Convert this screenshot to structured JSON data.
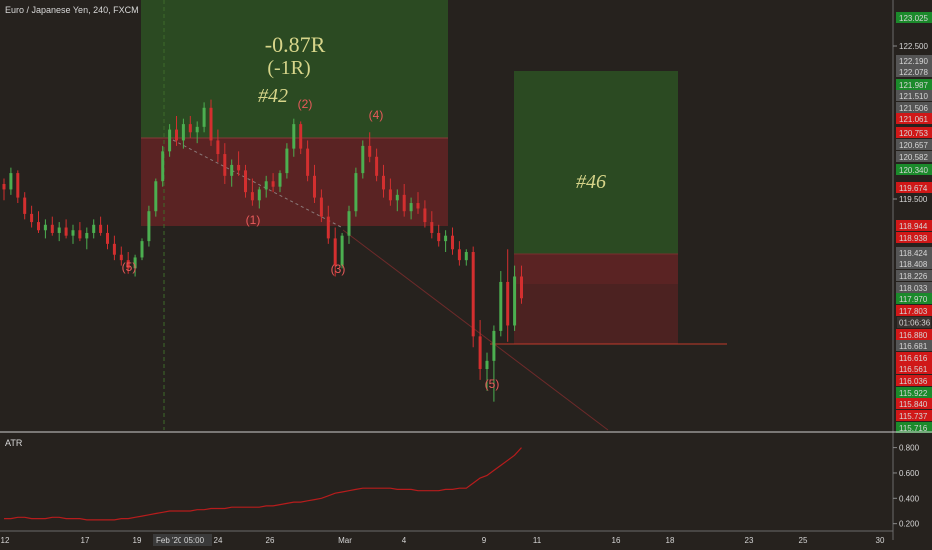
{
  "header": {
    "symbol_title": "Euro / Japanese Yen, 240, FXCM"
  },
  "indicator": {
    "name": "ATR",
    "ticks": [
      "0.800",
      "0.600",
      "0.400",
      "0.200"
    ]
  },
  "annotations": {
    "trade_result": "-0.87R",
    "trade_result_r": "(-1R)",
    "trade_a_id": "#42",
    "trade_b_id": "#46",
    "waves": [
      "(5)",
      "(2)",
      "(4)",
      "(1)",
      "(3)",
      "(5)",
      "(5)"
    ]
  },
  "countdown": "01:06:36",
  "colors": {
    "background": "#26221e",
    "profit_zone": "#2b4a22",
    "loss_zone": "#5a2323",
    "bull_candle": "#4caf50",
    "bear_candle": "#d32f2f",
    "atr_line": "#b71c1c",
    "annotation_text": "#d7d58a",
    "wave_label": "#e85a5a"
  },
  "price_axis": {
    "ticks": [
      "123.025",
      "122.500",
      "122.190",
      "122.078",
      "121.987",
      "121.510",
      "121.506",
      "121.061",
      "120.753",
      "120.657",
      "120.582",
      "120.340",
      "119.674",
      "119.500",
      "118.944",
      "118.938",
      "118.424",
      "118.408",
      "118.226",
      "118.033",
      "117.970",
      "117.803",
      "116.880",
      "116.681",
      "116.616",
      "116.561",
      "116.036",
      "115.922",
      "115.840",
      "115.737",
      "115.716"
    ],
    "tick_styles": [
      "green",
      "plain",
      "gray",
      "gray",
      "green",
      "gray",
      "gray",
      "red",
      "red",
      "gray",
      "gray",
      "green",
      "red",
      "plain",
      "red",
      "red",
      "gray",
      "gray",
      "gray",
      "gray",
      "green",
      "red",
      "red",
      "gray",
      "red",
      "red",
      "red",
      "green",
      "red",
      "red",
      "green"
    ]
  },
  "time_axis": {
    "labels": [
      "12",
      "17",
      "19",
      "Feb '20",
      "05:00",
      "24",
      "26",
      "Mar",
      "4",
      "9",
      "11",
      "16",
      "18",
      "23",
      "25",
      "30"
    ]
  },
  "chart_data": {
    "type": "candlestick",
    "title": "Euro / Japanese Yen, 240, FXCM",
    "ylim": [
      115.716,
      123.25
    ],
    "candles": [
      [
        120.2,
        120.3,
        119.9,
        120.1
      ],
      [
        120.1,
        120.5,
        120.0,
        120.4
      ],
      [
        120.4,
        120.45,
        119.85,
        119.95
      ],
      [
        119.95,
        120.05,
        119.55,
        119.65
      ],
      [
        119.65,
        119.8,
        119.4,
        119.5
      ],
      [
        119.5,
        119.7,
        119.3,
        119.35
      ],
      [
        119.35,
        119.55,
        119.2,
        119.45
      ],
      [
        119.45,
        119.6,
        119.25,
        119.3
      ],
      [
        119.3,
        119.5,
        119.15,
        119.4
      ],
      [
        119.4,
        119.55,
        119.2,
        119.25
      ],
      [
        119.25,
        119.45,
        119.1,
        119.35
      ],
      [
        119.35,
        119.5,
        119.15,
        119.2
      ],
      [
        119.2,
        119.4,
        119.0,
        119.3
      ],
      [
        119.3,
        119.55,
        119.2,
        119.45
      ],
      [
        119.45,
        119.6,
        119.25,
        119.3
      ],
      [
        119.3,
        119.45,
        119.0,
        119.1
      ],
      [
        119.1,
        119.25,
        118.8,
        118.9
      ],
      [
        118.9,
        119.05,
        118.7,
        118.8
      ],
      [
        118.8,
        118.95,
        118.55,
        118.65
      ],
      [
        118.65,
        118.9,
        118.5,
        118.85
      ],
      [
        118.85,
        119.2,
        118.8,
        119.15
      ],
      [
        119.15,
        119.8,
        119.05,
        119.7
      ],
      [
        119.7,
        120.3,
        119.6,
        120.25
      ],
      [
        120.25,
        120.9,
        120.15,
        120.8
      ],
      [
        120.8,
        121.3,
        120.7,
        121.2
      ],
      [
        121.2,
        121.45,
        120.9,
        121.0
      ],
      [
        121.0,
        121.4,
        120.85,
        121.3
      ],
      [
        121.3,
        121.45,
        121.05,
        121.15
      ],
      [
        121.15,
        121.35,
        120.95,
        121.25
      ],
      [
        121.25,
        121.7,
        121.15,
        121.6
      ],
      [
        121.6,
        121.75,
        120.9,
        121.0
      ],
      [
        121.0,
        121.2,
        120.6,
        120.75
      ],
      [
        120.75,
        120.95,
        120.2,
        120.35
      ],
      [
        120.35,
        120.65,
        120.15,
        120.55
      ],
      [
        120.55,
        120.8,
        120.35,
        120.45
      ],
      [
        120.45,
        120.55,
        119.95,
        120.05
      ],
      [
        120.05,
        120.3,
        119.8,
        119.9
      ],
      [
        119.9,
        120.15,
        119.75,
        120.1
      ],
      [
        120.1,
        120.35,
        119.95,
        120.25
      ],
      [
        120.25,
        120.4,
        120.05,
        120.15
      ],
      [
        120.15,
        120.45,
        120.05,
        120.4
      ],
      [
        120.4,
        120.95,
        120.3,
        120.85
      ],
      [
        120.85,
        121.4,
        120.7,
        121.3
      ],
      [
        121.3,
        121.35,
        120.75,
        120.85
      ],
      [
        120.85,
        121.0,
        120.25,
        120.35
      ],
      [
        120.35,
        120.55,
        119.85,
        119.95
      ],
      [
        119.95,
        120.1,
        119.5,
        119.6
      ],
      [
        119.6,
        119.8,
        119.1,
        119.2
      ],
      [
        119.2,
        119.4,
        118.5,
        118.7
      ],
      [
        118.7,
        119.3,
        118.65,
        119.25
      ],
      [
        119.25,
        119.8,
        119.1,
        119.7
      ],
      [
        119.7,
        120.5,
        119.6,
        120.4
      ],
      [
        120.4,
        121.0,
        120.3,
        120.9
      ],
      [
        120.9,
        121.15,
        120.6,
        120.7
      ],
      [
        120.7,
        120.85,
        120.25,
        120.35
      ],
      [
        120.35,
        120.55,
        119.95,
        120.1
      ],
      [
        120.1,
        120.3,
        119.8,
        119.9
      ],
      [
        119.9,
        120.1,
        119.7,
        120.0
      ],
      [
        120.0,
        120.2,
        119.6,
        119.7
      ],
      [
        119.7,
        119.95,
        119.55,
        119.85
      ],
      [
        119.85,
        120.05,
        119.65,
        119.75
      ],
      [
        119.75,
        119.9,
        119.4,
        119.5
      ],
      [
        119.5,
        119.7,
        119.2,
        119.3
      ],
      [
        119.3,
        119.45,
        119.05,
        119.15
      ],
      [
        119.15,
        119.35,
        118.95,
        119.25
      ],
      [
        119.25,
        119.4,
        118.9,
        119.0
      ],
      [
        119.0,
        119.15,
        118.7,
        118.8
      ],
      [
        118.8,
        119.0,
        118.7,
        118.95
      ],
      [
        118.95,
        119.05,
        117.2,
        117.4
      ],
      [
        117.4,
        117.7,
        116.6,
        116.8
      ],
      [
        116.8,
        117.1,
        116.4,
        116.95
      ],
      [
        116.95,
        117.6,
        116.2,
        117.5
      ],
      [
        117.5,
        118.6,
        117.4,
        118.4
      ],
      [
        118.4,
        119.0,
        117.3,
        117.6
      ],
      [
        117.6,
        118.7,
        117.5,
        118.5
      ],
      [
        118.5,
        118.7,
        118.0,
        118.1
      ]
    ],
    "atr": [
      0.24,
      0.24,
      0.25,
      0.25,
      0.24,
      0.24,
      0.24,
      0.25,
      0.25,
      0.24,
      0.24,
      0.24,
      0.23,
      0.23,
      0.23,
      0.23,
      0.23,
      0.24,
      0.24,
      0.25,
      0.26,
      0.27,
      0.28,
      0.29,
      0.3,
      0.3,
      0.3,
      0.3,
      0.31,
      0.31,
      0.32,
      0.32,
      0.32,
      0.33,
      0.33,
      0.33,
      0.33,
      0.33,
      0.34,
      0.34,
      0.35,
      0.36,
      0.37,
      0.37,
      0.38,
      0.39,
      0.4,
      0.42,
      0.44,
      0.45,
      0.46,
      0.47,
      0.48,
      0.48,
      0.48,
      0.48,
      0.48,
      0.47,
      0.47,
      0.47,
      0.46,
      0.46,
      0.46,
      0.46,
      0.47,
      0.47,
      0.48,
      0.48,
      0.52,
      0.56,
      0.58,
      0.62,
      0.66,
      0.7,
      0.74,
      0.8
    ],
    "indicator_ylim": [
      0.15,
      0.86
    ]
  }
}
